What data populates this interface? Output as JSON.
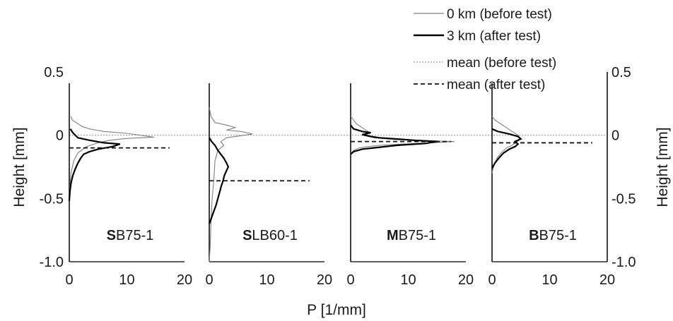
{
  "chart_data": {
    "type": "line",
    "xlabel": "P [1/mm]",
    "ylabel_left": "Height [mm]",
    "ylabel_right": "Height [mm]",
    "xlim": [
      0,
      20
    ],
    "ylim": [
      -1.0,
      0.5
    ],
    "x_ticks": [
      "0",
      "10",
      "20"
    ],
    "y_ticks": [
      "-1.0",
      "-0.5",
      "0",
      "0.5"
    ],
    "colors": {
      "before": "#808080",
      "after": "#000000",
      "mean_before": "#9a9a9a",
      "mean_after": "#111111"
    },
    "legend": {
      "position": "top-right",
      "entries": [
        {
          "label": "0 km (before test)",
          "style": "thin-gray"
        },
        {
          "label": "3 km (after test)",
          "style": "thick-black"
        },
        {
          "label": "mean (before test)",
          "style": "dotted-gray"
        },
        {
          "label": "mean (after test)",
          "style": "dashed-black"
        }
      ]
    },
    "mean_before_height": 0.0,
    "panels": [
      {
        "title_bold": "S",
        "title_rest": "B75-1",
        "mean_after": -0.1,
        "before": [
          [
            0.3,
            0.15
          ],
          [
            0.5,
            0.12
          ],
          [
            1.2,
            0.1
          ],
          [
            2.2,
            0.07
          ],
          [
            3.5,
            0.05
          ],
          [
            6.0,
            0.03
          ],
          [
            10.0,
            0.015
          ],
          [
            14.7,
            -0.015
          ],
          [
            10.0,
            -0.025
          ],
          [
            7.0,
            -0.04
          ],
          [
            5.0,
            -0.06
          ],
          [
            3.0,
            -0.09
          ],
          [
            1.5,
            -0.14
          ],
          [
            0.8,
            -0.2
          ],
          [
            0.3,
            -0.3
          ],
          [
            0.1,
            -0.4
          ],
          [
            0.0,
            -0.5
          ]
        ],
        "after": [
          [
            0.2,
            0.05
          ],
          [
            0.6,
            0.02
          ],
          [
            1.5,
            -0.02
          ],
          [
            3.5,
            -0.04
          ],
          [
            6.0,
            -0.06
          ],
          [
            8.8,
            -0.07
          ],
          [
            7.5,
            -0.09
          ],
          [
            5.0,
            -0.11
          ],
          [
            3.5,
            -0.13
          ],
          [
            2.5,
            -0.15
          ],
          [
            2.0,
            -0.18
          ],
          [
            1.5,
            -0.22
          ],
          [
            1.0,
            -0.27
          ],
          [
            0.6,
            -0.32
          ],
          [
            0.3,
            -0.38
          ],
          [
            0.1,
            -0.45
          ],
          [
            0.0,
            -0.52
          ]
        ]
      },
      {
        "title_bold": "S",
        "title_rest": "LB60-1",
        "mean_after": -0.36,
        "before": [
          [
            0.0,
            0.22
          ],
          [
            0.3,
            0.15
          ],
          [
            1.0,
            0.1
          ],
          [
            3.0,
            0.08
          ],
          [
            4.5,
            0.06
          ],
          [
            3.0,
            0.04
          ],
          [
            5.5,
            0.03
          ],
          [
            7.5,
            0.01
          ],
          [
            3.0,
            -0.02
          ],
          [
            2.0,
            -0.05
          ],
          [
            2.5,
            -0.08
          ],
          [
            1.5,
            -0.12
          ],
          [
            1.0,
            -0.2
          ],
          [
            0.8,
            -0.35
          ],
          [
            0.5,
            -0.5
          ],
          [
            0.3,
            -0.7
          ],
          [
            0.2,
            -0.85
          ],
          [
            0.0,
            -1.0
          ]
        ],
        "after": [
          [
            0.0,
            -0.02
          ],
          [
            0.4,
            -0.05
          ],
          [
            1.0,
            -0.08
          ],
          [
            1.5,
            -0.12
          ],
          [
            2.0,
            -0.15
          ],
          [
            2.5,
            -0.18
          ],
          [
            3.0,
            -0.22
          ],
          [
            3.3,
            -0.25
          ],
          [
            3.0,
            -0.28
          ],
          [
            2.6,
            -0.32
          ],
          [
            2.4,
            -0.36
          ],
          [
            2.1,
            -0.4
          ],
          [
            1.8,
            -0.45
          ],
          [
            1.5,
            -0.5
          ],
          [
            1.2,
            -0.55
          ],
          [
            0.8,
            -0.6
          ],
          [
            0.4,
            -0.65
          ],
          [
            0.0,
            -0.7
          ]
        ]
      },
      {
        "title_bold": "M",
        "title_rest": "B75-1",
        "mean_after": -0.05,
        "before": [
          [
            0.0,
            0.15
          ],
          [
            0.5,
            0.12
          ],
          [
            1.0,
            0.09
          ],
          [
            2.0,
            0.06
          ],
          [
            3.0,
            0.03
          ],
          [
            2.5,
            0.01
          ],
          [
            4.0,
            -0.02
          ],
          [
            8.0,
            -0.035
          ],
          [
            18.0,
            -0.05
          ],
          [
            14.0,
            -0.06
          ],
          [
            9.0,
            -0.07
          ],
          [
            5.0,
            -0.08
          ],
          [
            3.0,
            -0.09
          ],
          [
            1.5,
            -0.1
          ],
          [
            0.5,
            -0.12
          ],
          [
            0.0,
            -0.15
          ]
        ],
        "after": [
          [
            0.0,
            0.08
          ],
          [
            0.5,
            0.05
          ],
          [
            2.0,
            0.03
          ],
          [
            3.5,
            0.02
          ],
          [
            2.0,
            0.005
          ],
          [
            3.5,
            -0.01
          ],
          [
            5.0,
            -0.02
          ],
          [
            8.0,
            -0.03
          ],
          [
            11.0,
            -0.04
          ],
          [
            15.0,
            -0.05
          ],
          [
            13.0,
            -0.065
          ],
          [
            8.0,
            -0.08
          ],
          [
            4.0,
            -0.1
          ],
          [
            2.0,
            -0.11
          ],
          [
            0.5,
            -0.13
          ],
          [
            0.0,
            -0.15
          ]
        ]
      },
      {
        "title_bold": "B",
        "title_rest": "B75-1",
        "mean_after": -0.06,
        "before": [
          [
            0.0,
            0.15
          ],
          [
            0.5,
            0.12
          ],
          [
            1.5,
            0.09
          ],
          [
            2.5,
            0.06
          ],
          [
            3.5,
            0.03
          ],
          [
            4.5,
            0.0
          ],
          [
            5.0,
            -0.03
          ],
          [
            4.0,
            -0.06
          ],
          [
            3.5,
            -0.08
          ],
          [
            2.5,
            -0.1
          ],
          [
            1.8,
            -0.13
          ],
          [
            1.0,
            -0.17
          ],
          [
            0.5,
            -0.22
          ],
          [
            0.2,
            -0.26
          ],
          [
            0.0,
            -0.3
          ]
        ],
        "after": [
          [
            0.0,
            0.05
          ],
          [
            1.0,
            0.03
          ],
          [
            3.0,
            0.01
          ],
          [
            4.5,
            -0.01
          ],
          [
            5.0,
            -0.03
          ],
          [
            4.0,
            -0.05
          ],
          [
            4.5,
            -0.07
          ],
          [
            4.0,
            -0.09
          ],
          [
            3.0,
            -0.11
          ],
          [
            2.0,
            -0.14
          ],
          [
            1.2,
            -0.18
          ],
          [
            0.5,
            -0.22
          ],
          [
            0.0,
            -0.26
          ]
        ]
      }
    ]
  }
}
